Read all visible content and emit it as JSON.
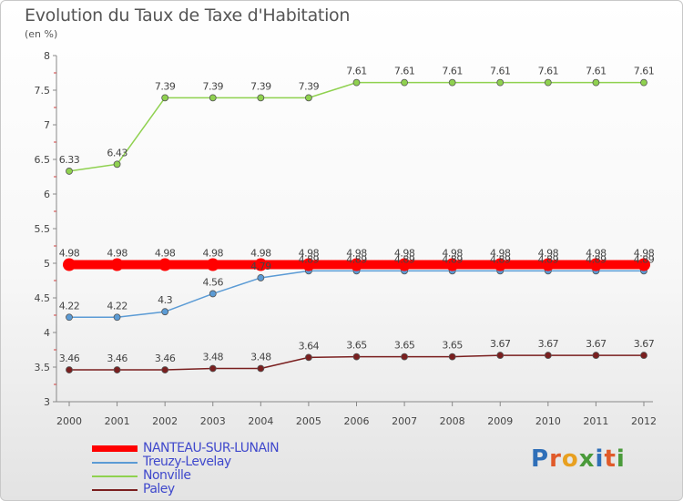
{
  "header": {
    "title": "Evolution du Taux de Taxe d'Habitation",
    "subtitle": "(en %)"
  },
  "logo": {
    "chars": [
      {
        "c": "P",
        "color": "#2f6fb8"
      },
      {
        "c": "r",
        "color": "#e05a2a"
      },
      {
        "c": "o",
        "color": "#e8a020"
      },
      {
        "c": "x",
        "color": "#4a9a3a"
      },
      {
        "c": "i",
        "color": "#2f6fb8"
      },
      {
        "c": "t",
        "color": "#e05a2a"
      },
      {
        "c": "i",
        "color": "#4a9a3a"
      }
    ]
  },
  "chart_data": {
    "type": "line",
    "title": "Evolution du Taux de Taxe d'Habitation",
    "ylabel": "(en %)",
    "xlabel": "",
    "ylim": [
      3,
      8
    ],
    "yticks": [
      "3",
      "3.5",
      "4",
      "4.5",
      "5",
      "5.5",
      "6",
      "6.5",
      "7",
      "7.5",
      "8"
    ],
    "x": [
      "2000",
      "2001",
      "2002",
      "2003",
      "2004",
      "2005",
      "2006",
      "2007",
      "2008",
      "2009",
      "2010",
      "2011",
      "2012"
    ],
    "grid": false,
    "legend": "bottom-left",
    "series": [
      {
        "name": "NANTEAU-SUR-LUNAIN",
        "color": "#ff0000",
        "values": [
          4.98,
          4.98,
          4.98,
          4.98,
          4.98,
          4.98,
          4.98,
          4.98,
          4.98,
          4.98,
          4.98,
          4.98,
          4.98
        ],
        "labels": [
          "4.98",
          "4.98",
          "4.98",
          "4.98",
          "4.98",
          "4.98",
          "4.98",
          "4.98",
          "4.98",
          "4.98",
          "4.98",
          "4.98",
          "4.98"
        ]
      },
      {
        "name": "Treuzy-Levelay",
        "color": "#5b9bd5",
        "values": [
          4.22,
          4.22,
          4.3,
          4.56,
          4.79,
          4.89,
          4.89,
          4.89,
          4.89,
          4.89,
          4.89,
          4.89,
          4.89
        ],
        "labels": [
          "4.22",
          "4.22",
          "4.3",
          "4.56",
          "4.79",
          "4.89",
          "4.89",
          "4.89",
          "4.89",
          "4.89",
          "4.89",
          "4.89",
          "4.89"
        ]
      },
      {
        "name": "Nonville",
        "color": "#8fd14f",
        "values": [
          6.33,
          6.43,
          7.39,
          7.39,
          7.39,
          7.39,
          7.61,
          7.61,
          7.61,
          7.61,
          7.61,
          7.61,
          7.61
        ],
        "labels": [
          "6.33",
          "6.43",
          "7.39",
          "7.39",
          "7.39",
          "7.39",
          "7.61",
          "7.61",
          "7.61",
          "7.61",
          "7.61",
          "7.61",
          "7.61"
        ]
      },
      {
        "name": "Paley",
        "color": "#7a1f1f",
        "values": [
          3.46,
          3.46,
          3.46,
          3.48,
          3.48,
          3.64,
          3.65,
          3.65,
          3.65,
          3.67,
          3.67,
          3.67,
          3.67
        ],
        "labels": [
          "3.46",
          "3.46",
          "3.46",
          "3.48",
          "3.48",
          "3.64",
          "3.65",
          "3.65",
          "3.65",
          "3.67",
          "3.67",
          "3.67",
          "3.67"
        ]
      }
    ]
  }
}
